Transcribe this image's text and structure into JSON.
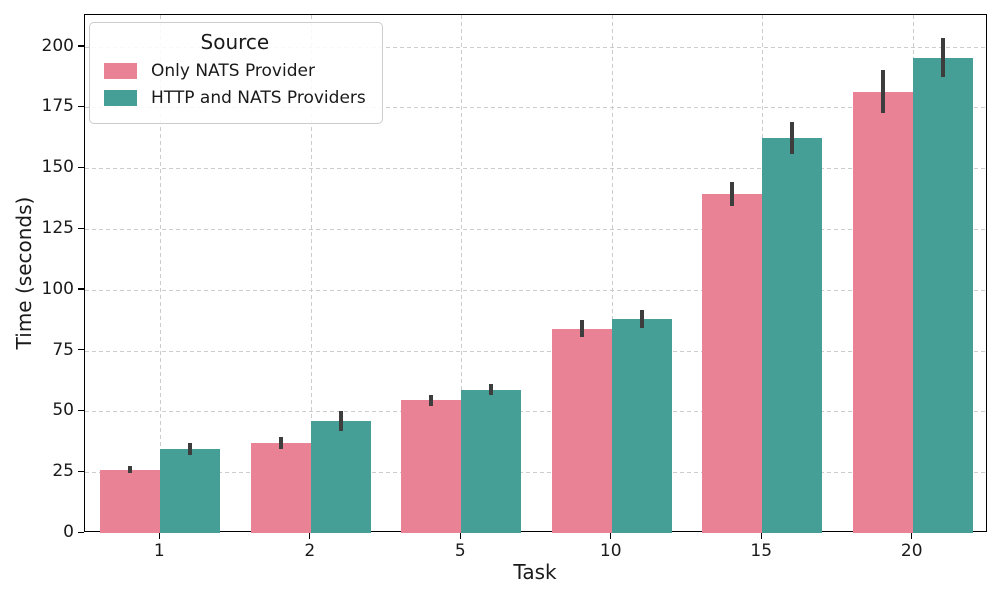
{
  "chart_data": {
    "type": "bar",
    "title": "",
    "xlabel": "Task",
    "ylabel": "Time (seconds)",
    "categories": [
      "1",
      "2",
      "5",
      "10",
      "15",
      "20"
    ],
    "series": [
      {
        "name": "Only NATS Provider",
        "color": "#e98295",
        "values": [
          26,
          37,
          54.5,
          84,
          139.5,
          181.5
        ],
        "errors": [
          1.5,
          2.6,
          2.4,
          3.4,
          5,
          9
        ]
      },
      {
        "name": "HTTP and NATS Providers",
        "color": "#469f97",
        "values": [
          34.5,
          46,
          59,
          88,
          162.5,
          195.5
        ],
        "errors": [
          2.4,
          4,
          2.3,
          3.9,
          6.6,
          8
        ]
      }
    ],
    "yticks": [
      0,
      25,
      50,
      75,
      100,
      125,
      150,
      175,
      200
    ],
    "ylim": [
      0,
      213
    ],
    "grid": {
      "show": true,
      "style": "dashed",
      "color": "#cccccc"
    },
    "error_bar_color": "#3d3d3d",
    "axis_color": "#000000",
    "legend": {
      "title": "Source",
      "position": "upper left"
    }
  }
}
